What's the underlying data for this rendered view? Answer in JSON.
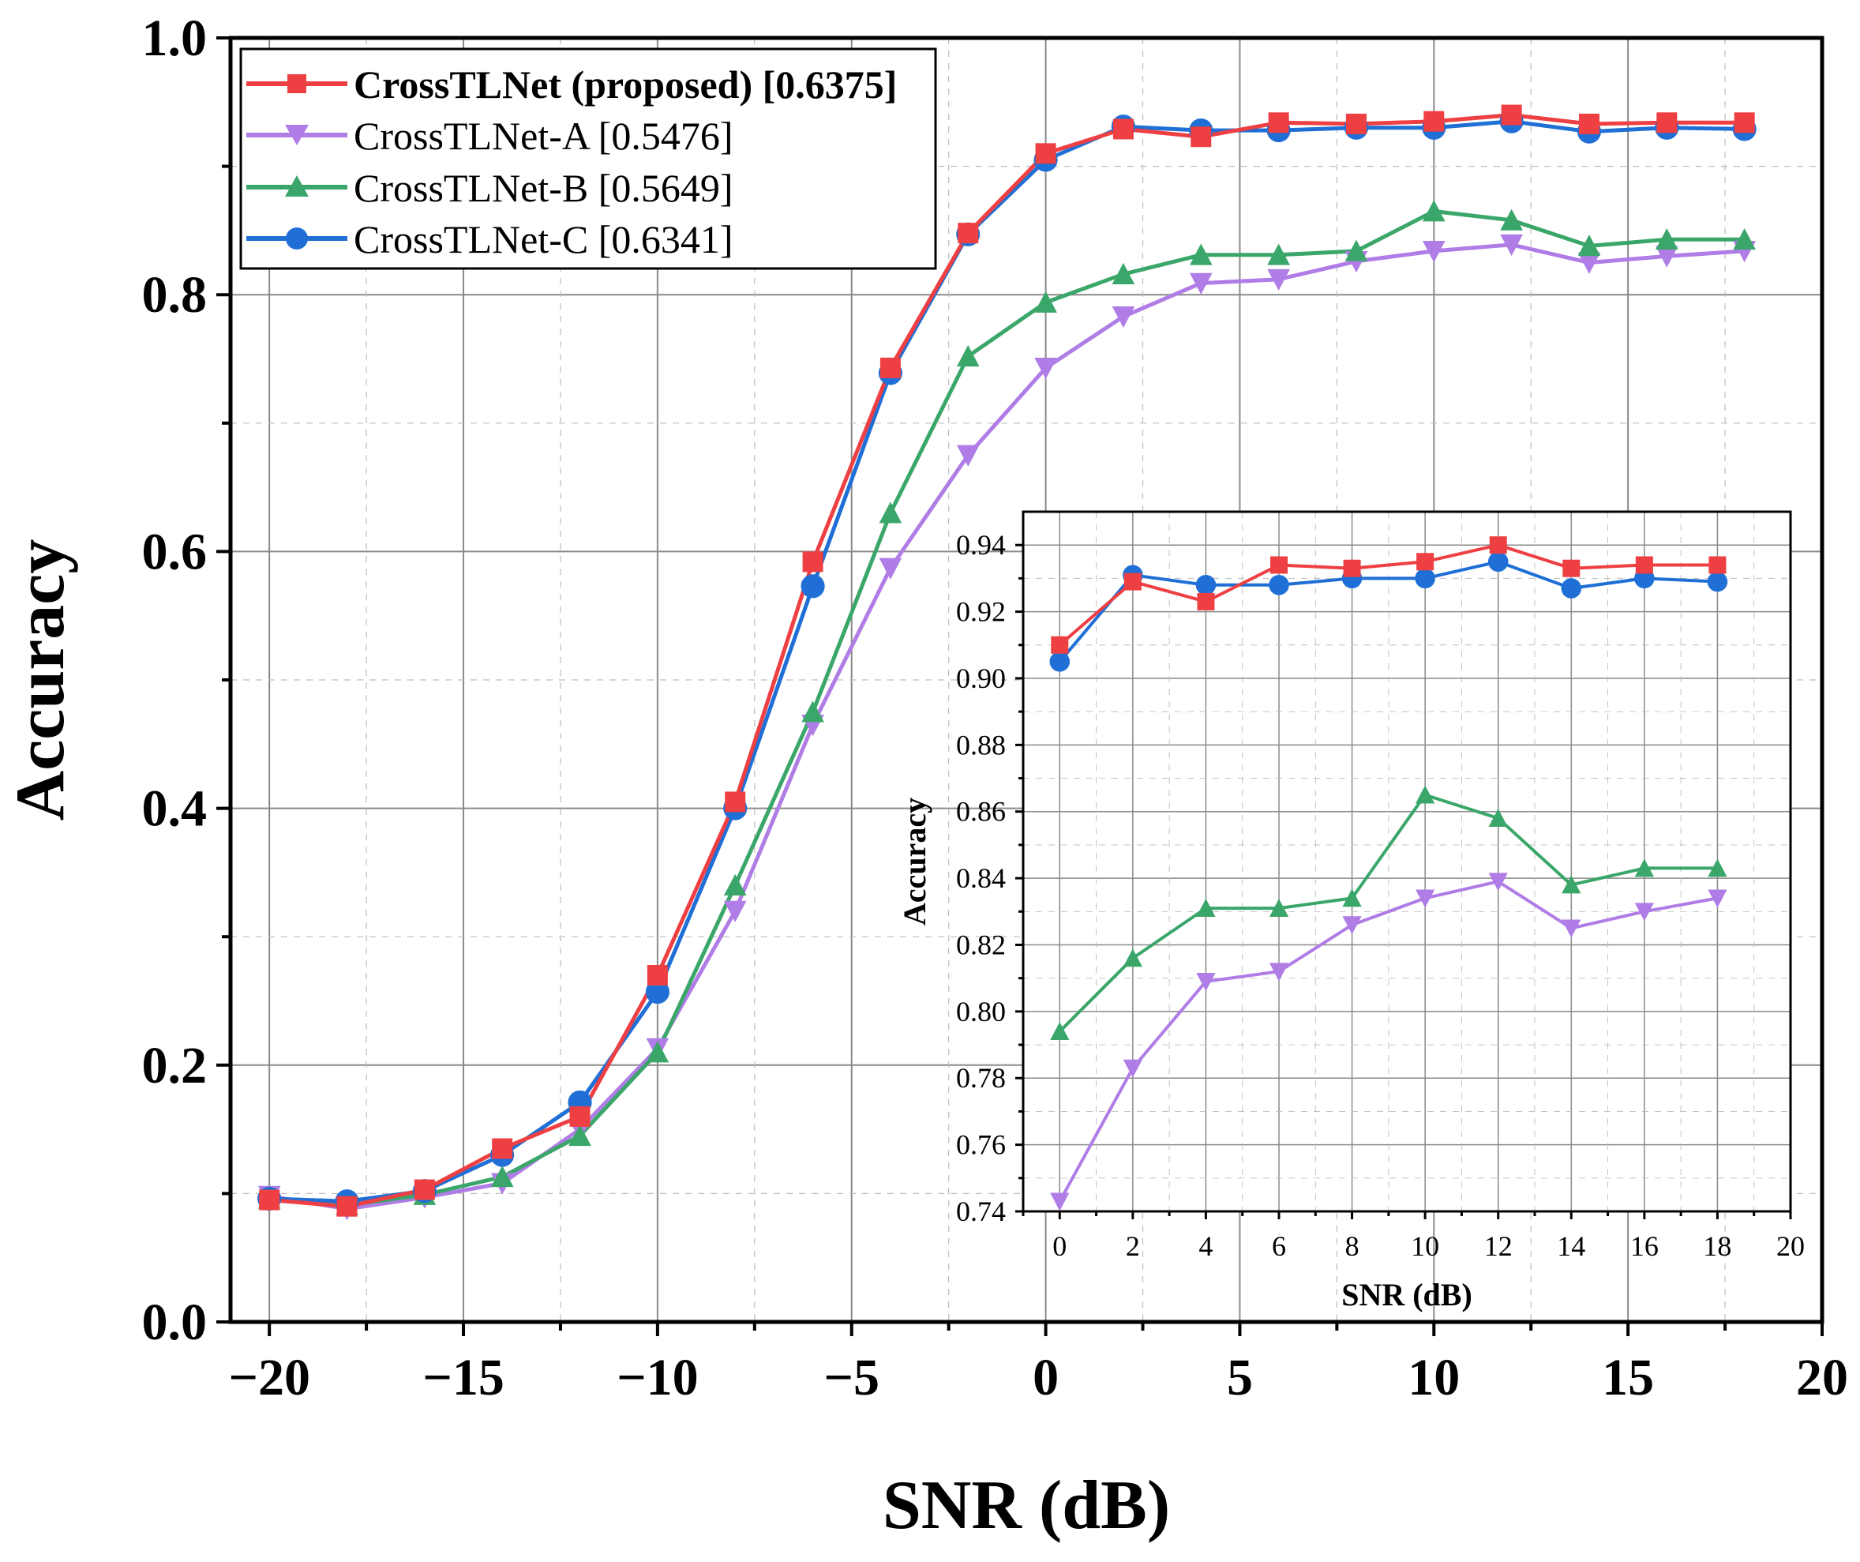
{
  "colors": {
    "red": "#ee3f43",
    "purple": "#b07ce6",
    "green": "#3aa66a",
    "blue": "#1f6fd6"
  },
  "chart_data": [
    {
      "type": "line",
      "title": "",
      "xlabel": "SNR (dB)",
      "ylabel": "Accuracy",
      "xlim": [
        -21,
        20
      ],
      "ylim": [
        0.0,
        1.0
      ],
      "xticks": [
        -20,
        -15,
        -10,
        -5,
        0,
        5,
        10,
        15,
        20
      ],
      "xtick_labels": [
        "−20",
        "−15",
        "−10",
        "−5",
        "0",
        "5",
        "10",
        "15",
        "20"
      ],
      "yticks": [
        0.0,
        0.2,
        0.4,
        0.6,
        0.8,
        1.0
      ],
      "ytick_labels": [
        "0.0",
        "0.2",
        "0.4",
        "0.6",
        "0.8",
        "1.0"
      ],
      "grid": true,
      "legend_position": "top-left",
      "x": [
        -20,
        -18,
        -16,
        -14,
        -12,
        -10,
        -8,
        -6,
        -4,
        -2,
        0,
        2,
        4,
        6,
        8,
        10,
        12,
        14,
        16,
        18
      ],
      "series": [
        {
          "name": "CrossTLNet (proposed) [0.6375]",
          "color": "red",
          "marker": "square",
          "bold": true,
          "values": [
            0.095,
            0.09,
            0.103,
            0.135,
            0.16,
            0.27,
            0.405,
            0.592,
            0.743,
            0.848,
            0.91,
            0.929,
            0.923,
            0.934,
            0.933,
            0.935,
            0.94,
            0.933,
            0.934,
            0.934
          ]
        },
        {
          "name": "CrossTLNet-A [0.5476]",
          "color": "purple",
          "marker": "triangle-down",
          "bold": false,
          "values": [
            0.098,
            0.088,
            0.097,
            0.108,
            0.15,
            0.213,
            0.32,
            0.465,
            0.587,
            0.675,
            0.743,
            0.783,
            0.809,
            0.812,
            0.826,
            0.834,
            0.839,
            0.825,
            0.83,
            0.834
          ]
        },
        {
          "name": "CrossTLNet-B [0.5649]",
          "color": "green",
          "marker": "triangle-up",
          "bold": false,
          "values": [
            0.096,
            0.091,
            0.099,
            0.113,
            0.145,
            0.21,
            0.34,
            0.475,
            0.63,
            0.752,
            0.794,
            0.816,
            0.831,
            0.831,
            0.834,
            0.865,
            0.858,
            0.838,
            0.843,
            0.843
          ]
        },
        {
          "name": "CrossTLNet-C [0.6341]",
          "color": "blue",
          "marker": "circle",
          "bold": false,
          "values": [
            0.096,
            0.094,
            0.102,
            0.13,
            0.171,
            0.257,
            0.4,
            0.573,
            0.739,
            0.847,
            0.905,
            0.931,
            0.928,
            0.928,
            0.93,
            0.93,
            0.935,
            0.927,
            0.93,
            0.929
          ]
        }
      ]
    },
    {
      "type": "line",
      "title": "",
      "xlabel": "SNR (dB)",
      "ylabel": "Accuracy",
      "xlim": [
        -1,
        20
      ],
      "ylim": [
        0.74,
        0.95
      ],
      "xticks": [
        0,
        2,
        4,
        6,
        8,
        10,
        12,
        14,
        16,
        18,
        20
      ],
      "xtick_labels": [
        "0",
        "2",
        "4",
        "6",
        "8",
        "10",
        "12",
        "14",
        "16",
        "18",
        "20"
      ],
      "yticks": [
        0.74,
        0.76,
        0.78,
        0.8,
        0.82,
        0.84,
        0.86,
        0.88,
        0.9,
        0.92,
        0.94
      ],
      "ytick_labels": [
        "0.74",
        "0.76",
        "0.78",
        "0.80",
        "0.82",
        "0.84",
        "0.86",
        "0.88",
        "0.90",
        "0.92",
        "0.94"
      ],
      "grid": true,
      "x": [
        0,
        2,
        4,
        6,
        8,
        10,
        12,
        14,
        16,
        18
      ],
      "series": [
        {
          "name": "CrossTLNet (proposed)",
          "color": "red",
          "marker": "square",
          "values": [
            0.91,
            0.929,
            0.923,
            0.934,
            0.933,
            0.935,
            0.94,
            0.933,
            0.934,
            0.934
          ]
        },
        {
          "name": "CrossTLNet-A",
          "color": "purple",
          "marker": "triangle-down",
          "values": [
            0.743,
            0.783,
            0.809,
            0.812,
            0.826,
            0.834,
            0.839,
            0.825,
            0.83,
            0.834
          ]
        },
        {
          "name": "CrossTLNet-B",
          "color": "green",
          "marker": "triangle-up",
          "values": [
            0.794,
            0.816,
            0.831,
            0.831,
            0.834,
            0.865,
            0.858,
            0.838,
            0.843,
            0.843
          ]
        },
        {
          "name": "CrossTLNet-C",
          "color": "blue",
          "marker": "circle",
          "values": [
            0.905,
            0.931,
            0.928,
            0.928,
            0.93,
            0.93,
            0.935,
            0.927,
            0.93,
            0.929
          ]
        }
      ]
    }
  ]
}
